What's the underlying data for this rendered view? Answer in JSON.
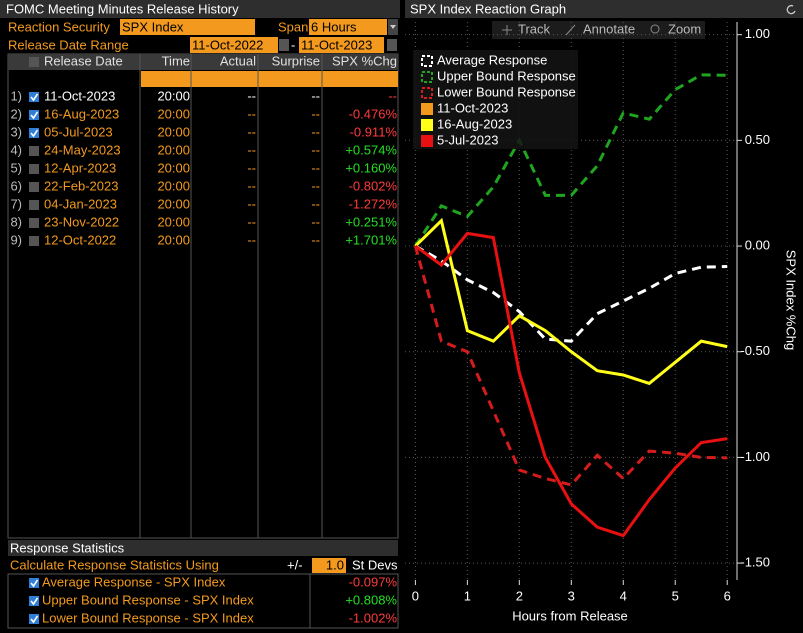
{
  "left_panel": {
    "title": "FOMC Meeting Minutes Release History",
    "security_label": "Reaction Security",
    "security": "SPX Index",
    "span_label": "Span",
    "span": "6 Hours",
    "range_label": "Release Date Range",
    "range_start": "11-Oct-2022",
    "range_sep": "-",
    "range_end": "11-Oct-2023",
    "columns": [
      "Release Date",
      "Time",
      "Actual",
      "Surprise",
      "SPX %Chg"
    ],
    "rows": [
      [
        "1)",
        "11-Oct-2023",
        "20:00",
        "--",
        "--",
        "--"
      ],
      [
        "2)",
        "16-Aug-2023",
        "20:00",
        "--",
        "--",
        "-0.476%"
      ],
      [
        "3)",
        "05-Jul-2023",
        "20:00",
        "--",
        "--",
        "-0.911%"
      ],
      [
        "4)",
        "24-May-2023",
        "20:00",
        "--",
        "--",
        "+0.574%"
      ],
      [
        "5)",
        "12-Apr-2023",
        "20:00",
        "--",
        "--",
        "+0.160%"
      ],
      [
        "6)",
        "22-Feb-2023",
        "20:00",
        "--",
        "--",
        "-0.802%"
      ],
      [
        "7)",
        "04-Jan-2023",
        "20:00",
        "--",
        "--",
        "-1.272%"
      ],
      [
        "8)",
        "23-Nov-2022",
        "20:00",
        "--",
        "--",
        "+0.251%"
      ],
      [
        "9)",
        "12-Oct-2022",
        "20:00",
        "--",
        "--",
        "+1.701%"
      ]
    ],
    "checked": [
      true,
      true,
      true,
      false,
      false,
      false,
      false,
      false,
      false
    ],
    "stats_title": "Response Statistics",
    "stats_calc": "Calculate Response Statistics Using",
    "stats_pm": "+/-",
    "stats_n": "1.0",
    "stats_unit": "St Devs",
    "stats": [
      [
        "Average Response - SPX Index",
        "-0.097%"
      ],
      [
        "Upper Bound Response - SPX Index",
        "+0.808%"
      ],
      [
        "Lower Bound Response - SPX Index",
        "-1.002%"
      ]
    ]
  },
  "chart_data": {
    "type": "line",
    "title": "SPX Index Reaction Graph",
    "tools": [
      "Track",
      "Annotate",
      "Zoom"
    ],
    "x_label": "Hours from Release",
    "y_label": "SPX Index %Chg",
    "x": [
      0,
      0.5,
      1,
      1.5,
      2,
      2.5,
      3,
      3.5,
      4,
      4.5,
      5,
      5.5,
      6
    ],
    "xlim": [
      -0.2,
      6.15
    ],
    "ylim": [
      -1.58,
      1.06
    ],
    "xticks": [
      0,
      1,
      2,
      3,
      4,
      5,
      6
    ],
    "yticks": [
      {
        "value": 1,
        "label": "1.00"
      },
      {
        "value": 0.5,
        "label": "0.50"
      },
      {
        "value": 0,
        "label": "0.00"
      },
      {
        "value": -0.5,
        "label": "-0.50"
      },
      {
        "value": -1,
        "label": "-1.00"
      },
      {
        "value": -1.5,
        "label": "-1.50"
      }
    ],
    "grid": true,
    "series": [
      {
        "name": "Average Response",
        "color": "#ffffff",
        "dashed": true,
        "values": [
          0,
          -0.07,
          -0.16,
          -0.22,
          -0.31,
          -0.44,
          -0.45,
          -0.32,
          -0.26,
          -0.2,
          -0.13,
          -0.1,
          -0.097
        ]
      },
      {
        "name": "Upper Bound Response",
        "color": "#1fa51f",
        "dashed": true,
        "values": [
          0,
          0.19,
          0.14,
          0.28,
          0.5,
          0.24,
          0.24,
          0.38,
          0.63,
          0.6,
          0.74,
          0.81,
          0.808
        ]
      },
      {
        "name": "Lower Bound Response",
        "color": "#d41c1c",
        "dashed": true,
        "values": [
          0,
          -0.45,
          -0.5,
          -0.78,
          -1.06,
          -1.1,
          -1.13,
          -0.99,
          -1.1,
          -0.97,
          -0.98,
          -1.0,
          -1.002
        ]
      },
      {
        "name": "11-Oct-2023",
        "color": "#f39a1e",
        "dashed": false,
        "values": [
          0,
          null,
          null,
          null,
          null,
          null,
          null,
          null,
          null,
          null,
          null,
          null,
          null
        ]
      },
      {
        "name": "16-Aug-2023",
        "color": "#ffff1a",
        "dashed": false,
        "values": [
          0,
          0.12,
          -0.4,
          -0.45,
          -0.33,
          -0.4,
          -0.5,
          -0.59,
          -0.61,
          -0.65,
          -0.55,
          -0.45,
          -0.476
        ]
      },
      {
        "name": "5-Jul-2023",
        "color": "#e81010",
        "dashed": false,
        "values": [
          0,
          -0.09,
          0.06,
          0.04,
          -0.6,
          -1.0,
          -1.22,
          -1.33,
          -1.37,
          -1.2,
          -1.05,
          -0.93,
          -0.911
        ]
      }
    ]
  }
}
